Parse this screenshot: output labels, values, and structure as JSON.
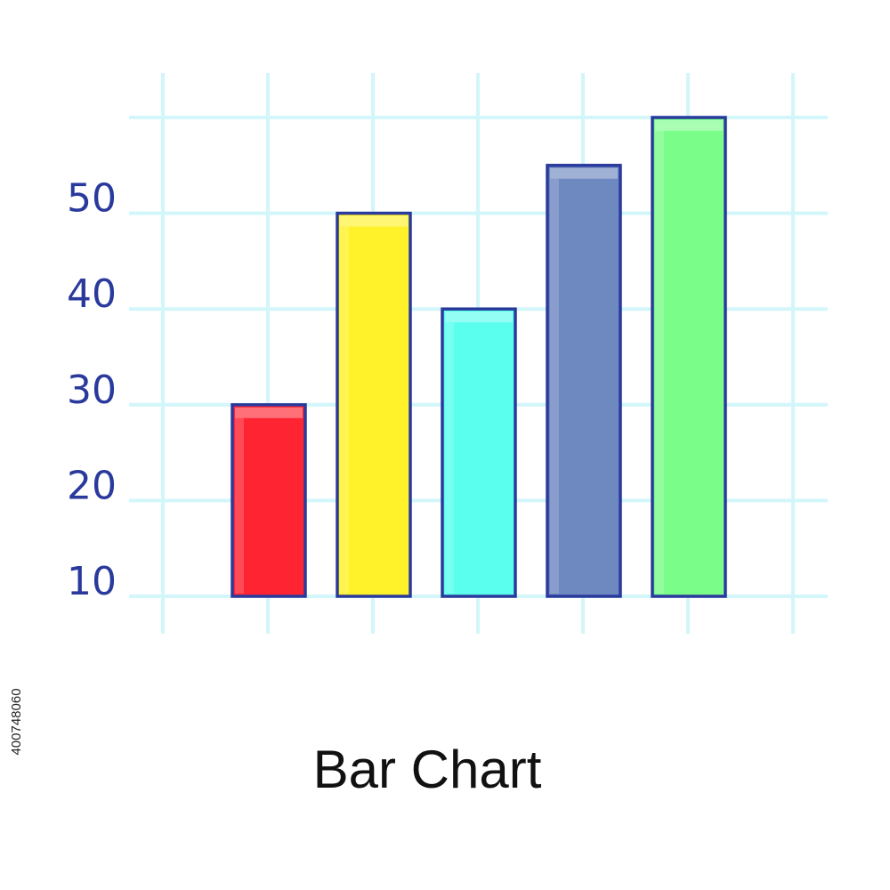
{
  "chart_data": {
    "type": "bar",
    "title": "Bar Chart",
    "xlabel": "",
    "ylabel": "",
    "categories": [
      "",
      "",
      "",
      "",
      ""
    ],
    "values": [
      30,
      50,
      40,
      55,
      60
    ],
    "ylim": [
      10,
      60
    ],
    "y_ticks": [
      "10",
      "20",
      "30",
      "40",
      "50"
    ],
    "grid": true,
    "colors": [
      "#ff2432",
      "#fff22a",
      "#5affee",
      "#6e88c0",
      "#7bfd8a"
    ],
    "outline_color": "#2a3a9c",
    "grid_color": "#d2f6fa",
    "tick_color": "#2a3a9c"
  },
  "image_id": "400748060"
}
